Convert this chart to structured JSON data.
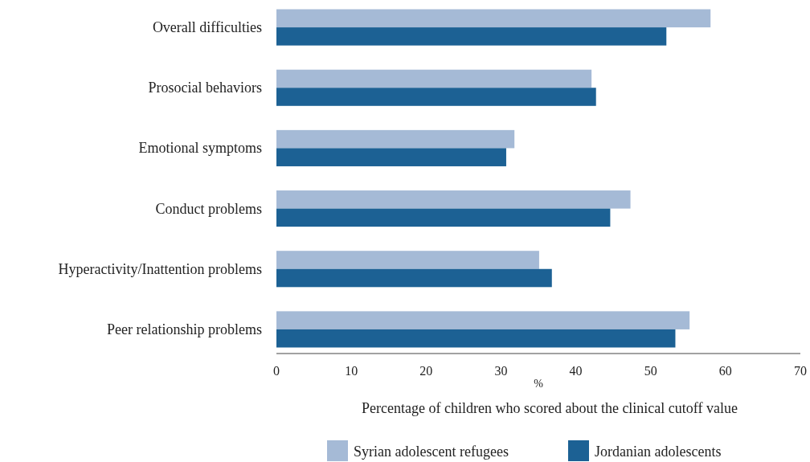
{
  "chart_data": {
    "type": "bar",
    "orientation": "horizontal",
    "categories": [
      "Overall difficulties",
      "Prosocial behaviors",
      "Emotional symptoms",
      "Conduct problems",
      "Hyperactivity/Inattention problems",
      "Peer relationship problems"
    ],
    "series": [
      {
        "name": "Syrian adolescent refugees",
        "color": "#a5bad6",
        "values": [
          58.0,
          42.1,
          31.8,
          47.3,
          35.1,
          55.2
        ]
      },
      {
        "name": "Jordanian adolescents",
        "color": "#1c6194",
        "values": [
          52.1,
          42.7,
          30.7,
          44.6,
          36.8,
          53.3
        ]
      }
    ],
    "xlim": [
      0,
      70
    ],
    "xticks": [
      0,
      10,
      20,
      30,
      40,
      50,
      60,
      70
    ],
    "xlabel": "%",
    "annotations": [
      "Percentage of children who scored about the clinical cutoff value"
    ],
    "grid": false,
    "legend": "bottom"
  }
}
